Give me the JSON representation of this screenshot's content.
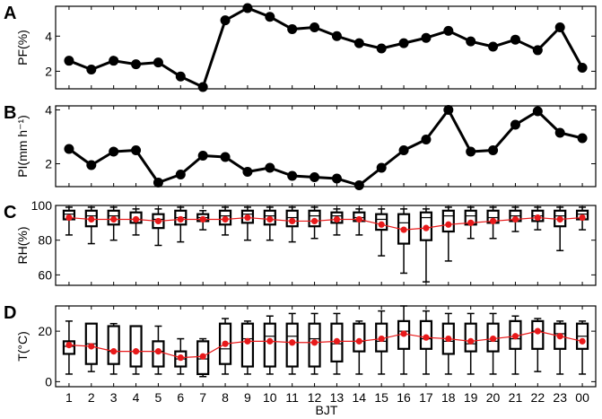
{
  "figure": {
    "xlabel": "BJT",
    "x_ticks": [
      "1",
      "2",
      "3",
      "4",
      "5",
      "6",
      "7",
      "8",
      "9",
      "10",
      "11",
      "12",
      "13",
      "14",
      "15",
      "16",
      "17",
      "18",
      "19",
      "20",
      "21",
      "22",
      "23",
      "00"
    ]
  },
  "chart_data": [
    {
      "panel": "A",
      "type": "line",
      "ylabel": "PF(%)",
      "yticks": [
        "2",
        "4"
      ],
      "ylim": [
        1.0,
        5.7
      ],
      "color": "#000000",
      "values": [
        2.6,
        2.1,
        2.6,
        2.4,
        2.5,
        1.7,
        1.1,
        4.9,
        5.6,
        5.1,
        4.4,
        4.5,
        4.0,
        3.6,
        3.3,
        3.6,
        3.9,
        4.3,
        3.7,
        3.4,
        3.8,
        3.2,
        4.5,
        2.2
      ]
    },
    {
      "panel": "B",
      "type": "line",
      "ylabel": "PI(mm h⁻¹)",
      "yticks": [
        "2",
        "4"
      ],
      "ylim": [
        1.15,
        4.15
      ],
      "color": "#000000",
      "values": [
        2.55,
        1.95,
        2.45,
        2.5,
        1.3,
        1.6,
        2.3,
        2.25,
        1.7,
        1.85,
        1.55,
        1.5,
        1.45,
        1.2,
        1.85,
        2.5,
        2.9,
        4.0,
        2.45,
        2.5,
        3.45,
        3.95,
        3.15,
        2.95
      ]
    },
    {
      "panel": "C",
      "type": "box",
      "ylabel": "RH(%)",
      "yticks": [
        "60",
        "80",
        "100"
      ],
      "ylim": [
        54,
        100
      ],
      "mean_color": "#e8191a",
      "whiskers_low": [
        83,
        78,
        80,
        83,
        77,
        79,
        86,
        83,
        80,
        80,
        79,
        81,
        83,
        83,
        71,
        61,
        56,
        68,
        81,
        81,
        85,
        86,
        74,
        86
      ],
      "q1": [
        92,
        88,
        89,
        90,
        87,
        89,
        91,
        89,
        90,
        89,
        88,
        88,
        90,
        91,
        86,
        78,
        80,
        85,
        89,
        90,
        91,
        91,
        88,
        92
      ],
      "median": [
        95,
        94,
        94,
        92,
        92,
        93,
        93,
        94,
        95,
        94,
        93,
        94,
        94,
        93,
        92,
        90,
        93,
        94,
        94,
        93,
        94,
        94,
        94,
        95
      ],
      "q3": [
        97,
        97,
        97,
        96,
        95,
        97,
        95,
        97,
        97,
        97,
        97,
        97,
        96,
        96,
        95,
        95,
        96,
        97,
        97,
        97,
        97,
        97,
        97,
        97
      ],
      "whiskers_high": [
        99,
        99,
        99,
        98,
        98,
        99,
        97,
        99,
        99,
        99,
        99,
        99,
        98,
        98,
        98,
        98,
        98,
        99,
        99,
        99,
        99,
        99,
        99,
        99
      ],
      "means": [
        93,
        92,
        92,
        92,
        91,
        92,
        92,
        92,
        93,
        92,
        91,
        91,
        92,
        92,
        89,
        86,
        87,
        89,
        90,
        91,
        92,
        93,
        92,
        93
      ]
    },
    {
      "panel": "D",
      "type": "box",
      "ylabel": "T(°C)",
      "yticks": [
        "0",
        "20"
      ],
      "ylim": [
        -2,
        30
      ],
      "mean_color": "#e8191a",
      "whiskers_low": [
        3,
        4,
        3,
        3,
        3,
        3,
        2,
        3,
        3,
        3,
        3,
        3,
        3,
        3,
        3,
        3,
        3,
        3,
        3,
        3,
        3,
        4,
        3,
        3
      ],
      "q1": [
        11,
        7,
        7,
        6,
        6,
        6,
        3,
        7,
        6,
        6,
        6,
        6,
        8,
        12,
        12,
        13,
        13,
        11,
        12,
        12,
        13,
        13,
        13,
        13
      ],
      "median": [
        14,
        15,
        12,
        12,
        12,
        9,
        9,
        13,
        17,
        18,
        18,
        17,
        15,
        16,
        16,
        20,
        17,
        16,
        15,
        16,
        17,
        20,
        19,
        18
      ],
      "q3": [
        16,
        23,
        22,
        22,
        16,
        12,
        16,
        23,
        23,
        23,
        23,
        23,
        23,
        23,
        23,
        24,
        24,
        23,
        23,
        23,
        24,
        24,
        23,
        23
      ],
      "whiskers_high": [
        24,
        23,
        23,
        22,
        22,
        17,
        17,
        25,
        24,
        26,
        27,
        27,
        27,
        24,
        28,
        30,
        28,
        27,
        27,
        27,
        26,
        25,
        24,
        24
      ],
      "means": [
        14.5,
        14,
        12,
        12,
        12,
        9.5,
        10,
        15,
        16,
        16,
        15.5,
        15.5,
        16,
        16,
        17,
        19,
        17.5,
        17,
        16,
        17,
        18,
        20,
        18,
        16
      ]
    }
  ]
}
